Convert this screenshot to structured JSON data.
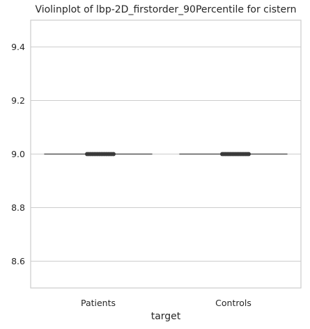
{
  "chart_data": {
    "type": "violin",
    "title": "Violinplot of lbp-2D_firstorder_90Percentile for cistern",
    "xlabel": "target",
    "ylabel": "",
    "categories": [
      "Patients",
      "Controls"
    ],
    "yticks": [
      "8.6",
      "8.8",
      "9.0",
      "9.2",
      "9.4"
    ],
    "ylim": [
      8.5,
      9.5
    ],
    "grid": true,
    "series": [
      {
        "category": "Patients",
        "values": [
          9.0,
          9.0,
          9.0,
          9.0,
          9.0,
          9.0,
          9.0,
          9.0,
          9.0,
          9.0,
          9.0,
          9.0,
          9.0,
          9.0,
          9.0,
          9.0
        ]
      },
      {
        "category": "Controls",
        "values": [
          9.0,
          9.0,
          9.0,
          9.0,
          9.0,
          9.0,
          9.0,
          9.0,
          9.0,
          9.0,
          9.0,
          9.0,
          9.0,
          9.0,
          9.0,
          9.0,
          9.0
        ]
      }
    ]
  }
}
